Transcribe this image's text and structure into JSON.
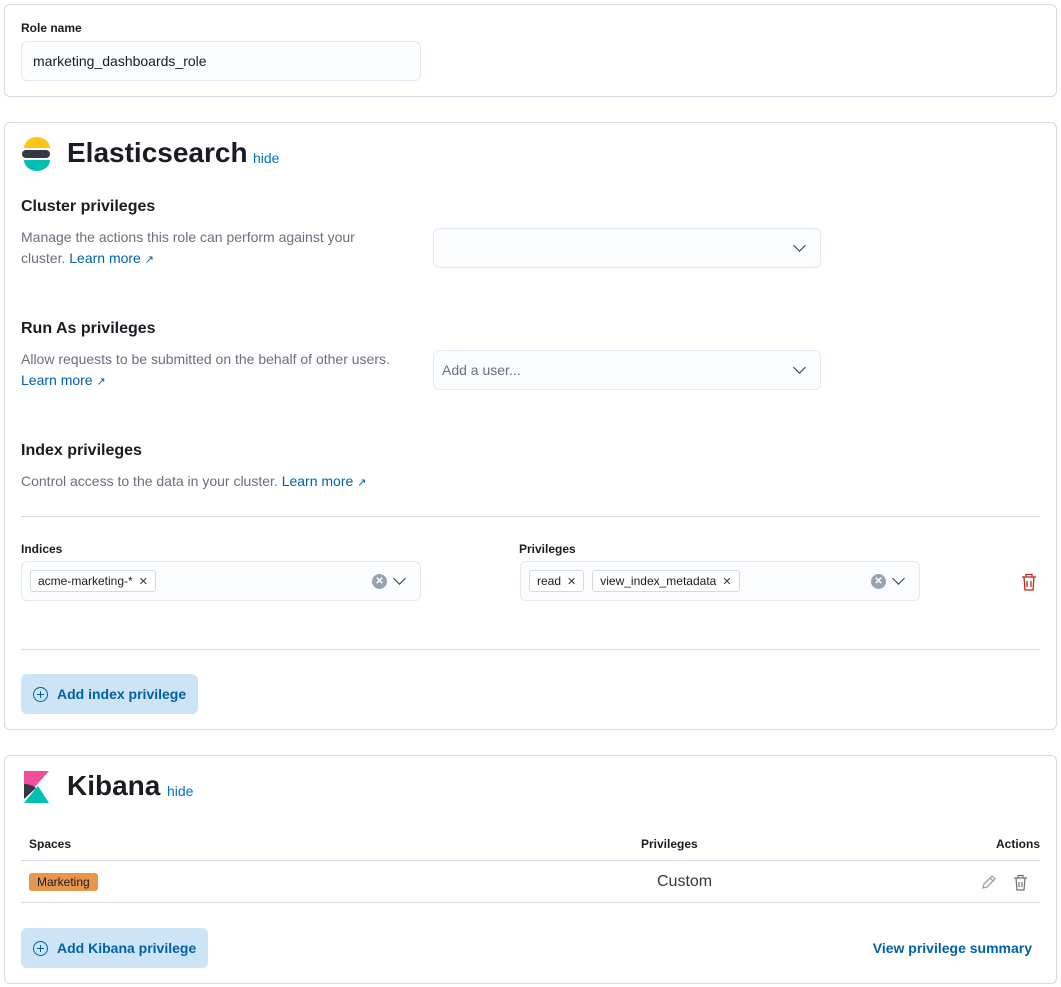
{
  "role": {
    "label": "Role name",
    "value": "marketing_dashboards_role"
  },
  "elasticsearch": {
    "title": "Elasticsearch",
    "hide": "hide",
    "cluster": {
      "title": "Cluster privileges",
      "desc": "Manage the actions this role can perform against your cluster.",
      "learn_more": "Learn more",
      "value": ""
    },
    "run_as": {
      "title": "Run As privileges",
      "desc": "Allow requests to be submitted on the behalf of other users.",
      "learn_more": "Learn more",
      "placeholder": "Add a user..."
    },
    "index": {
      "title": "Index privileges",
      "desc": "Control access to the data in your cluster.",
      "learn_more": "Learn more",
      "indices_label": "Indices",
      "indices": [
        "acme-marketing-*"
      ],
      "privileges_label": "Privileges",
      "privileges": [
        "read",
        "view_index_metadata"
      ]
    },
    "add_button": "Add index privilege"
  },
  "kibana": {
    "title": "Kibana",
    "hide": "hide",
    "columns": [
      "Spaces",
      "Privileges",
      "Actions"
    ],
    "rows": [
      {
        "space": "Marketing",
        "space_color": "#e7964b",
        "privilege": "Custom"
      }
    ],
    "add_button": "Add Kibana privilege",
    "summary_link": "View privilege summary"
  }
}
